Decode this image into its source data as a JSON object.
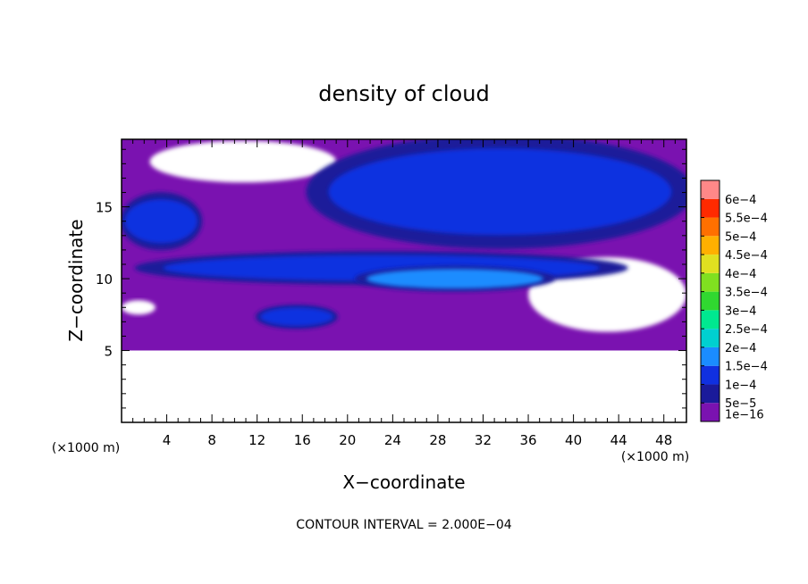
{
  "chart_data": {
    "type": "heatmap",
    "title": "density of cloud",
    "xlabel": "X−coordinate",
    "ylabel": "Z−coordinate",
    "x_unit_left": "(×1000 m)",
    "x_unit_right": "(×1000 m)",
    "footer": "CONTOUR INTERVAL = 2.000E−04",
    "xlim": [
      0,
      50
    ],
    "ylim": [
      0,
      19.7
    ],
    "x_ticks": [
      4,
      8,
      12,
      16,
      20,
      24,
      28,
      32,
      36,
      40,
      44,
      48
    ],
    "x_tick_labels": [
      "4",
      "8",
      "12",
      "16",
      "20",
      "24",
      "28",
      "32",
      "36",
      "40",
      "44",
      "48"
    ],
    "y_ticks": [
      5,
      10,
      15
    ],
    "y_tick_labels": [
      "5",
      "10",
      "15"
    ],
    "colorbar": {
      "labels": [
        "1e−16",
        "5e−5",
        "1e−4",
        "1.5e−4",
        "2e−4",
        "2.5e−4",
        "3e−4",
        "3.5e−4",
        "4e−4",
        "4.5e−4",
        "5e−4",
        "5.5e−4",
        "6e−4"
      ],
      "colors": [
        "#7a12b0",
        "#1a1a9a",
        "#1030e0",
        "#1a8cff",
        "#00d0d0",
        "#00e890",
        "#30d830",
        "#80e020",
        "#e0e020",
        "#ffb000",
        "#ff7000",
        "#ff2a00",
        "#ff8888"
      ]
    },
    "cloud_levels": [
      {
        "level": "1e−16",
        "color": "#7a12b0"
      },
      {
        "level": "5e−5",
        "color": "#1a1a9a"
      },
      {
        "level": "1e−4",
        "color": "#1030e0"
      },
      {
        "level": "1.5e−4",
        "color": "#1a8cff"
      }
    ],
    "cloud_base_km": 5.0,
    "clear_gaps": [
      {
        "x": [
          2.5,
          19
        ],
        "z": [
          16.7,
          19.6
        ]
      },
      {
        "x": [
          0,
          3
        ],
        "z": [
          7.5,
          8.5
        ]
      },
      {
        "x": [
          36,
          50
        ],
        "z": [
          6.3,
          11.5
        ]
      }
    ],
    "dense_regions": [
      {
        "x": [
          17,
          50
        ],
        "z": [
          12.5,
          19.6
        ],
        "level": "1e−4"
      },
      {
        "x": [
          0,
          7
        ],
        "z": [
          12.2,
          15.8
        ],
        "level": "1e−4"
      },
      {
        "x": [
          2,
          44
        ],
        "z": [
          9.7,
          11.8
        ],
        "level": "1e−4"
      },
      {
        "x": [
          21,
          38
        ],
        "z": [
          9.2,
          10.8
        ],
        "level": "1.5e−4"
      },
      {
        "x": [
          12,
          19
        ],
        "z": [
          6.6,
          8.1
        ],
        "level": "1e−4"
      }
    ]
  }
}
